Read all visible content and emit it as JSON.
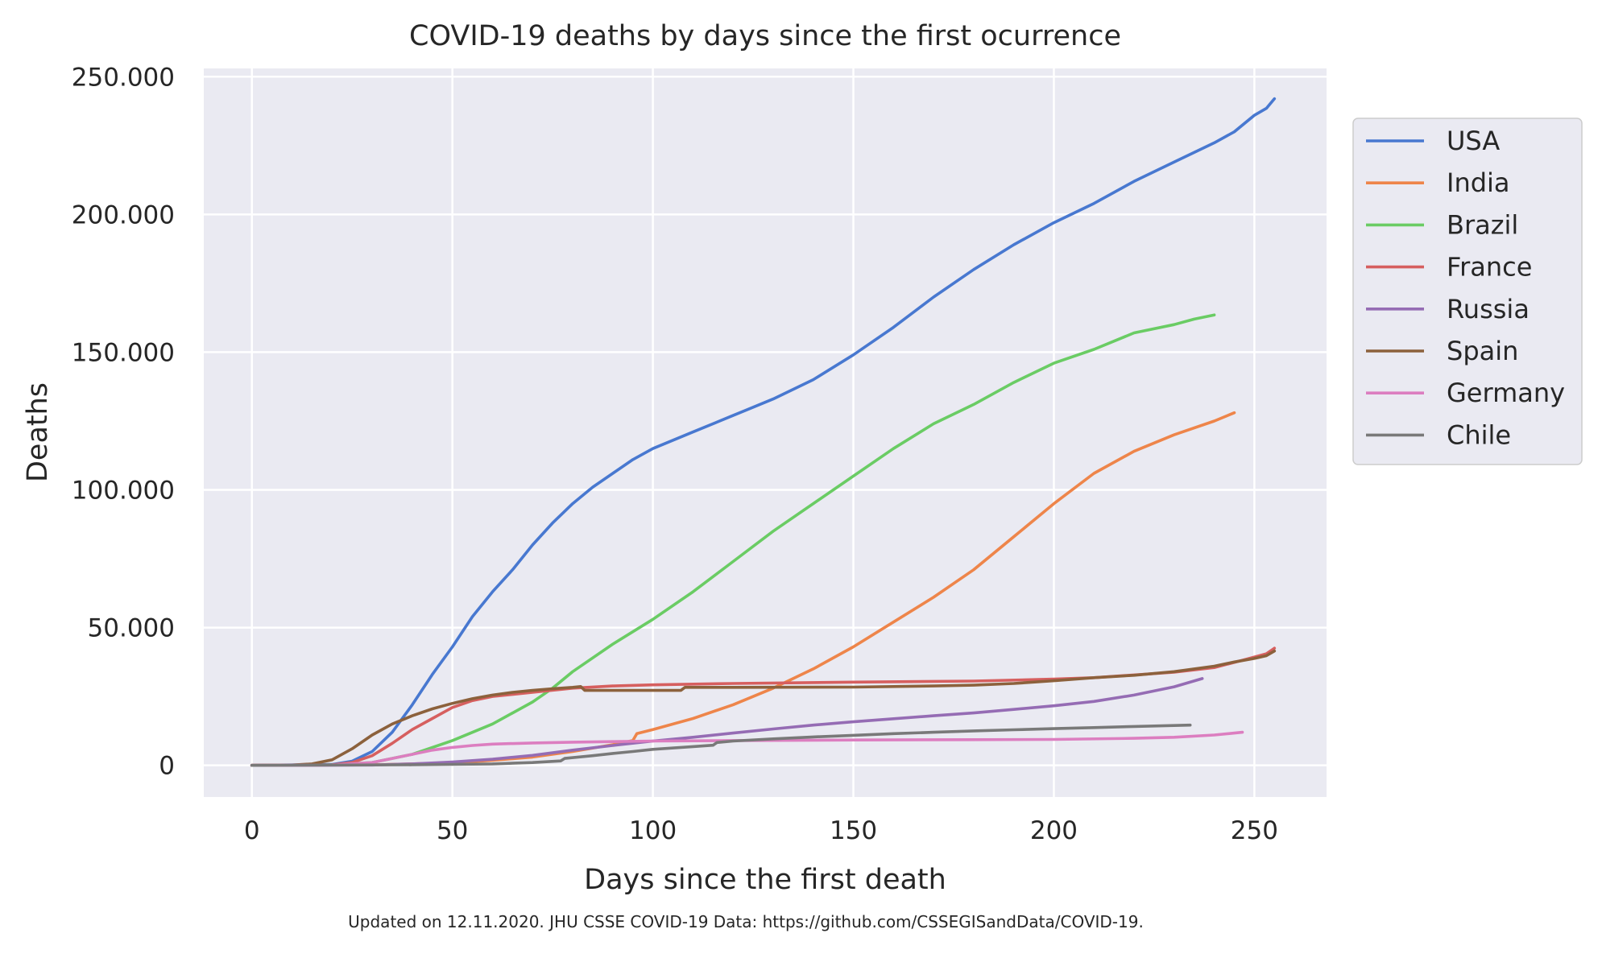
{
  "chart_data": {
    "type": "line",
    "title": "COVID-19 deaths by days since the first ocurrence",
    "xlabel": "Days since the first death",
    "ylabel": "Deaths",
    "xlim": [
      -12,
      268
    ],
    "ylim": [
      -11500,
      253000
    ],
    "x_ticks": [
      0,
      50,
      100,
      150,
      200,
      250
    ],
    "x_tick_labels": [
      "0",
      "50",
      "100",
      "150",
      "200",
      "250"
    ],
    "y_ticks": [
      0,
      50000,
      100000,
      150000,
      200000,
      250000
    ],
    "y_tick_labels": [
      "0",
      "50.000",
      "100.000",
      "150.000",
      "200.000",
      "250.000"
    ],
    "grid": true,
    "legend_position": "right, outside plot",
    "background": "#eaeaf2",
    "footnote": "Updated on 12.11.2020. JHU CSSE COVID-19 Data: https://github.com/CSSEGISandData/COVID-19.",
    "series": [
      {
        "name": "USA",
        "color": "#4878d0",
        "points": [
          [
            0,
            0
          ],
          [
            20,
            300
          ],
          [
            25,
            1500
          ],
          [
            30,
            5000
          ],
          [
            35,
            12000
          ],
          [
            40,
            22000
          ],
          [
            45,
            33000
          ],
          [
            50,
            43000
          ],
          [
            55,
            54000
          ],
          [
            60,
            63000
          ],
          [
            65,
            71000
          ],
          [
            70,
            80000
          ],
          [
            75,
            88000
          ],
          [
            80,
            95000
          ],
          [
            85,
            101000
          ],
          [
            90,
            106000
          ],
          [
            95,
            111000
          ],
          [
            100,
            115000
          ],
          [
            110,
            121000
          ],
          [
            120,
            127000
          ],
          [
            130,
            133000
          ],
          [
            140,
            140000
          ],
          [
            150,
            149000
          ],
          [
            160,
            159000
          ],
          [
            170,
            170000
          ],
          [
            180,
            180000
          ],
          [
            190,
            189000
          ],
          [
            200,
            197000
          ],
          [
            210,
            204000
          ],
          [
            220,
            212000
          ],
          [
            230,
            219000
          ],
          [
            240,
            226000
          ],
          [
            245,
            230000
          ],
          [
            250,
            236000
          ],
          [
            253,
            238500
          ],
          [
            255,
            242000
          ]
        ]
      },
      {
        "name": "India",
        "color": "#ee854a",
        "points": [
          [
            0,
            0
          ],
          [
            30,
            200
          ],
          [
            50,
            900
          ],
          [
            60,
            1800
          ],
          [
            70,
            3000
          ],
          [
            80,
            5000
          ],
          [
            90,
            7500
          ],
          [
            95,
            9000
          ],
          [
            96,
            11500
          ],
          [
            100,
            13000
          ],
          [
            110,
            17000
          ],
          [
            120,
            22000
          ],
          [
            130,
            28000
          ],
          [
            140,
            35000
          ],
          [
            150,
            43000
          ],
          [
            160,
            52000
          ],
          [
            170,
            61000
          ],
          [
            180,
            71000
          ],
          [
            190,
            83000
          ],
          [
            200,
            95000
          ],
          [
            210,
            106000
          ],
          [
            220,
            114000
          ],
          [
            230,
            120000
          ],
          [
            240,
            125000
          ],
          [
            245,
            128000
          ]
        ]
      },
      {
        "name": "Brazil",
        "color": "#6acc64",
        "points": [
          [
            0,
            0
          ],
          [
            20,
            200
          ],
          [
            30,
            1000
          ],
          [
            40,
            4000
          ],
          [
            50,
            9000
          ],
          [
            60,
            15000
          ],
          [
            70,
            23000
          ],
          [
            75,
            28000
          ],
          [
            80,
            34000
          ],
          [
            90,
            44000
          ],
          [
            100,
            53000
          ],
          [
            110,
            63000
          ],
          [
            120,
            74000
          ],
          [
            130,
            85000
          ],
          [
            140,
            95000
          ],
          [
            150,
            105000
          ],
          [
            160,
            115000
          ],
          [
            170,
            124000
          ],
          [
            180,
            131000
          ],
          [
            190,
            139000
          ],
          [
            200,
            146000
          ],
          [
            210,
            151000
          ],
          [
            220,
            157000
          ],
          [
            230,
            160000
          ],
          [
            235,
            162000
          ],
          [
            240,
            163500
          ]
        ]
      },
      {
        "name": "France",
        "color": "#d65f5f",
        "points": [
          [
            0,
            0
          ],
          [
            20,
            200
          ],
          [
            25,
            1000
          ],
          [
            30,
            3500
          ],
          [
            35,
            8000
          ],
          [
            40,
            13000
          ],
          [
            45,
            17000
          ],
          [
            50,
            21000
          ],
          [
            55,
            23500
          ],
          [
            60,
            25000
          ],
          [
            70,
            26500
          ],
          [
            80,
            28000
          ],
          [
            90,
            28800
          ],
          [
            100,
            29200
          ],
          [
            120,
            29700
          ],
          [
            150,
            30200
          ],
          [
            180,
            30600
          ],
          [
            200,
            31300
          ],
          [
            210,
            31800
          ],
          [
            220,
            32800
          ],
          [
            230,
            33800
          ],
          [
            240,
            35500
          ],
          [
            248,
            38500
          ],
          [
            253,
            40500
          ],
          [
            255,
            42500
          ]
        ]
      },
      {
        "name": "Russia",
        "color": "#956cb4",
        "points": [
          [
            0,
            0
          ],
          [
            30,
            100
          ],
          [
            40,
            500
          ],
          [
            50,
            1200
          ],
          [
            60,
            2200
          ],
          [
            70,
            3600
          ],
          [
            80,
            5500
          ],
          [
            90,
            7200
          ],
          [
            100,
            8800
          ],
          [
            110,
            10200
          ],
          [
            120,
            11700
          ],
          [
            130,
            13200
          ],
          [
            140,
            14600
          ],
          [
            150,
            15800
          ],
          [
            160,
            16900
          ],
          [
            170,
            18000
          ],
          [
            180,
            19000
          ],
          [
            190,
            20300
          ],
          [
            200,
            21600
          ],
          [
            210,
            23200
          ],
          [
            220,
            25500
          ],
          [
            230,
            28500
          ],
          [
            237,
            31500
          ]
        ]
      },
      {
        "name": "Spain",
        "color": "#8c613c",
        "points": [
          [
            0,
            0
          ],
          [
            10,
            100
          ],
          [
            15,
            500
          ],
          [
            20,
            2000
          ],
          [
            25,
            6000
          ],
          [
            30,
            11000
          ],
          [
            35,
            15000
          ],
          [
            40,
            18000
          ],
          [
            45,
            20500
          ],
          [
            50,
            22500
          ],
          [
            55,
            24200
          ],
          [
            60,
            25500
          ],
          [
            65,
            26500
          ],
          [
            70,
            27200
          ],
          [
            75,
            27800
          ],
          [
            80,
            28300
          ],
          [
            82,
            28600
          ],
          [
            83,
            27200
          ],
          [
            90,
            27200
          ],
          [
            100,
            27200
          ],
          [
            107,
            27200
          ],
          [
            108,
            28300
          ],
          [
            120,
            28300
          ],
          [
            150,
            28400
          ],
          [
            170,
            28800
          ],
          [
            180,
            29100
          ],
          [
            190,
            29700
          ],
          [
            200,
            30700
          ],
          [
            210,
            31800
          ],
          [
            220,
            32700
          ],
          [
            230,
            34000
          ],
          [
            240,
            36000
          ],
          [
            245,
            37500
          ],
          [
            250,
            38800
          ],
          [
            253,
            39800
          ],
          [
            255,
            41500
          ]
        ]
      },
      {
        "name": "Germany",
        "color": "#dc7ec0",
        "points": [
          [
            0,
            0
          ],
          [
            20,
            100
          ],
          [
            30,
            1000
          ],
          [
            35,
            2500
          ],
          [
            40,
            4000
          ],
          [
            45,
            5500
          ],
          [
            50,
            6500
          ],
          [
            55,
            7200
          ],
          [
            60,
            7700
          ],
          [
            70,
            8100
          ],
          [
            80,
            8400
          ],
          [
            90,
            8600
          ],
          [
            100,
            8800
          ],
          [
            120,
            9000
          ],
          [
            150,
            9200
          ],
          [
            180,
            9300
          ],
          [
            200,
            9400
          ],
          [
            220,
            9800
          ],
          [
            230,
            10200
          ],
          [
            240,
            11000
          ],
          [
            247,
            12000
          ]
        ]
      },
      {
        "name": "Chile",
        "color": "#797979",
        "points": [
          [
            0,
            0
          ],
          [
            40,
            200
          ],
          [
            60,
            500
          ],
          [
            70,
            1000
          ],
          [
            77,
            1600
          ],
          [
            78,
            2500
          ],
          [
            85,
            3500
          ],
          [
            90,
            4300
          ],
          [
            95,
            5000
          ],
          [
            100,
            5800
          ],
          [
            110,
            6800
          ],
          [
            115,
            7300
          ],
          [
            116,
            8300
          ],
          [
            120,
            8800
          ],
          [
            130,
            9600
          ],
          [
            140,
            10300
          ],
          [
            150,
            10900
          ],
          [
            160,
            11500
          ],
          [
            170,
            12000
          ],
          [
            180,
            12500
          ],
          [
            190,
            12900
          ],
          [
            200,
            13300
          ],
          [
            210,
            13700
          ],
          [
            220,
            14100
          ],
          [
            234,
            14600
          ]
        ]
      }
    ]
  }
}
